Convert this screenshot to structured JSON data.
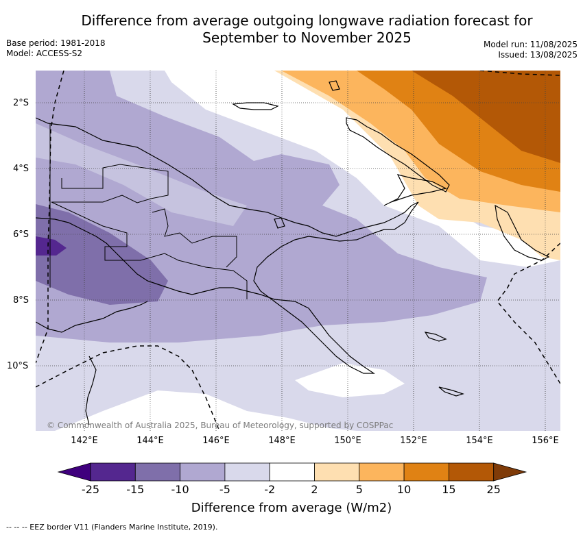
{
  "header": {
    "title_line1": "Difference from average outgoing longwave radiation forecast for",
    "title_line2": "September to November 2025",
    "base_period": "Base period: 1981-2018",
    "model": "Model: ACCESS-S2",
    "model_run": "Model run: 11/08/2025",
    "issued": "Issued: 13/08/2025"
  },
  "map": {
    "lat_labels": [
      "2°S",
      "4°S",
      "6°S",
      "8°S",
      "10°S"
    ],
    "lon_labels": [
      "142°E",
      "144°E",
      "146°E",
      "148°E",
      "150°E",
      "152°E",
      "154°E",
      "156°E"
    ],
    "copyright": "© Commonwealth of Australia 2025, Bureau of Meteorology, supported by COSPPac"
  },
  "colorbar": {
    "ticks": [
      "-25",
      "-15",
      "-10",
      "-5",
      "-2",
      "2",
      "5",
      "10",
      "15",
      "25"
    ],
    "colors": [
      "#3f007d",
      "#54278f",
      "#7f6faa",
      "#b0a8d1",
      "#d9d9eb",
      "#ffffff",
      "#fedfb1",
      "#fcb55d",
      "#e08214",
      "#b35806",
      "#7f3b08"
    ],
    "label": "Difference from average (W/m2)"
  },
  "footer": {
    "legend": "--  --  -- EEZ border V11 (Flanders Marine Institute, 2019)."
  }
}
